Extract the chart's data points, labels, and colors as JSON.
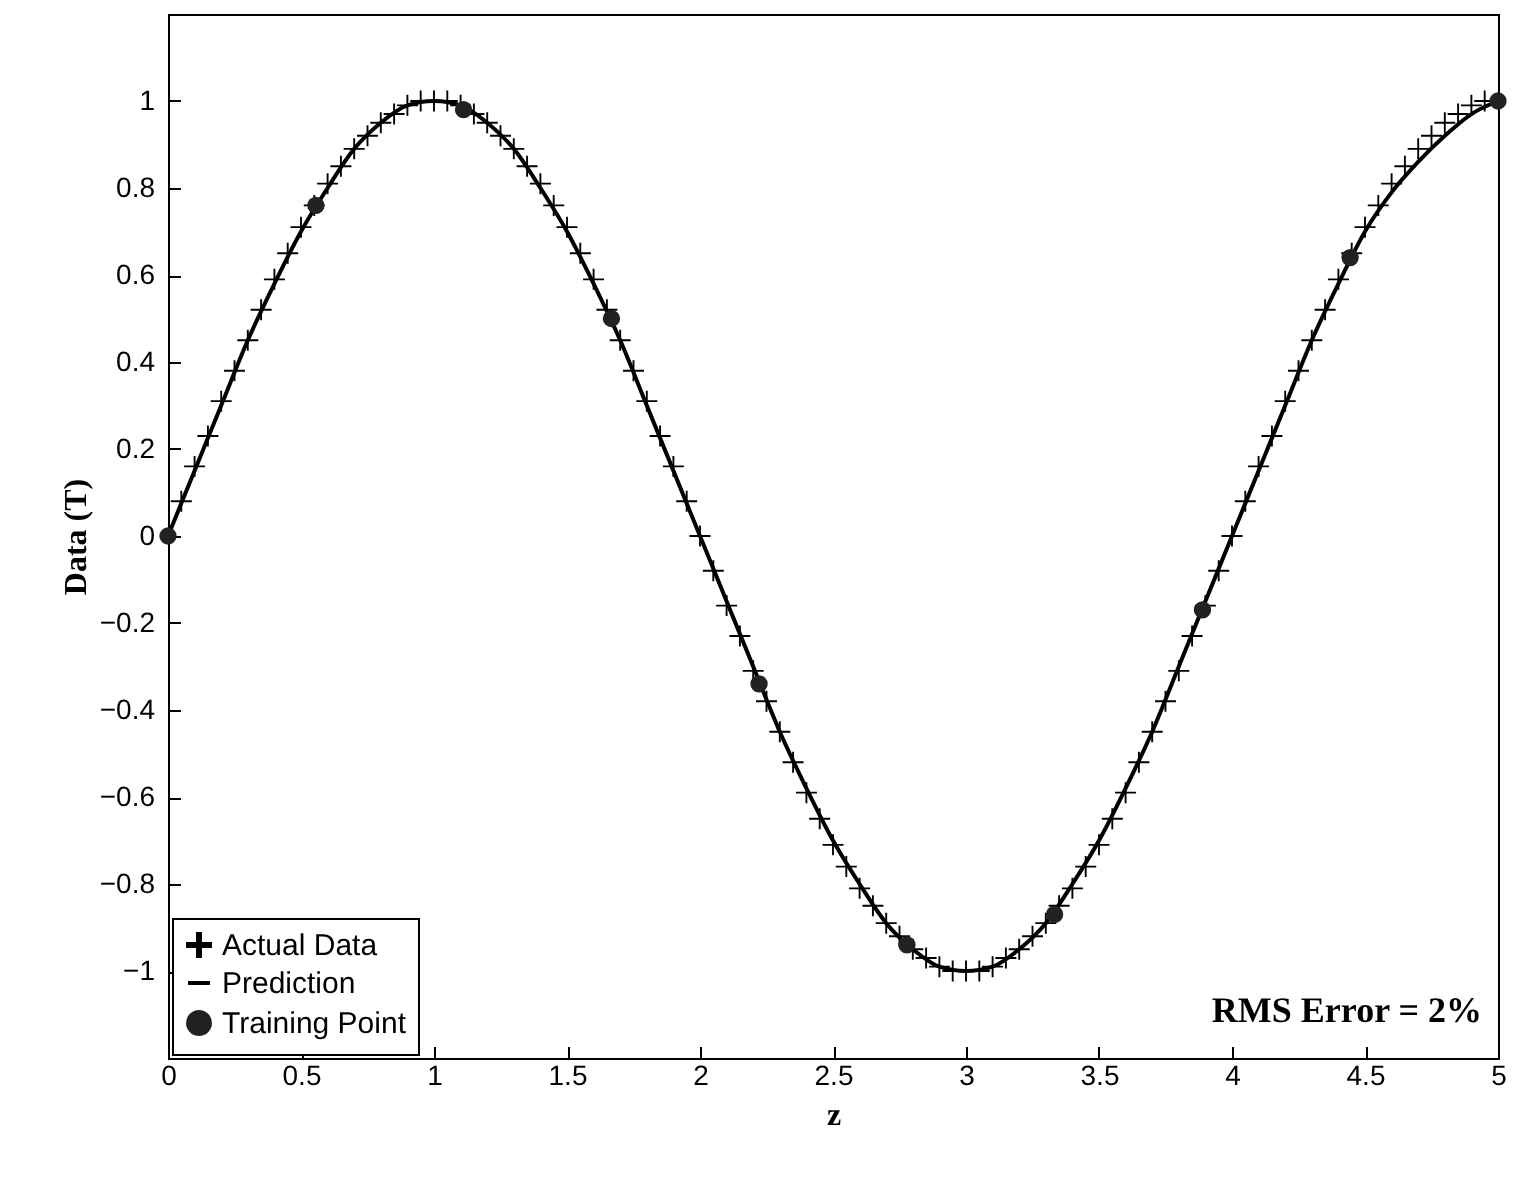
{
  "chart_data": {
    "type": "scatter",
    "xlabel": "z",
    "ylabel": "Data (T)",
    "xlim": [
      0,
      5
    ],
    "ylim": [
      -1.2,
      1.2
    ],
    "xticks": [
      0,
      0.5,
      1,
      1.5,
      2,
      2.5,
      3,
      3.5,
      4,
      4.5,
      5
    ],
    "yticks": [
      -1,
      -0.8,
      -0.6,
      -0.4,
      -0.2,
      0,
      0.2,
      0.4,
      0.6,
      0.8,
      1
    ],
    "grid": false,
    "legend": "bottom left",
    "annotations": [
      "RMS Error = 2%"
    ],
    "series": [
      {
        "name": "Actual Data",
        "marker": "cross",
        "color": "#000000",
        "x": [
          0.05,
          0.1,
          0.15,
          0.2,
          0.25,
          0.3,
          0.35,
          0.4,
          0.45,
          0.5,
          0.55,
          0.6,
          0.65,
          0.7,
          0.75,
          0.8,
          0.85,
          0.9,
          0.95,
          1,
          1.05,
          1.1,
          1.15,
          1.2,
          1.25,
          1.3,
          1.35,
          1.4,
          1.45,
          1.5,
          1.55,
          1.6,
          1.65,
          1.7,
          1.75,
          1.8,
          1.85,
          1.9,
          1.95,
          2,
          2.05,
          2.1,
          2.15,
          2.2,
          2.25,
          2.3,
          2.35,
          2.4,
          2.45,
          2.5,
          2.55,
          2.6,
          2.65,
          2.7,
          2.75,
          2.8,
          2.85,
          2.9,
          2.95,
          3,
          3.05,
          3.1,
          3.15,
          3.2,
          3.25,
          3.3,
          3.35,
          3.4,
          3.45,
          3.5,
          3.55,
          3.6,
          3.65,
          3.7,
          3.75,
          3.8,
          3.85,
          3.9,
          3.95,
          4,
          4.05,
          4.1,
          4.15,
          4.2,
          4.25,
          4.3,
          4.35,
          4.4,
          4.45,
          4.5,
          4.55,
          4.6,
          4.65,
          4.7,
          4.75,
          4.8,
          4.85,
          4.9,
          4.95
        ],
        "values": [
          0.08,
          0.16,
          0.23,
          0.31,
          0.38,
          0.45,
          0.52,
          0.59,
          0.65,
          0.71,
          0.76,
          0.81,
          0.85,
          0.89,
          0.92,
          0.95,
          0.97,
          0.99,
          1,
          1,
          1,
          0.99,
          0.97,
          0.95,
          0.92,
          0.89,
          0.85,
          0.81,
          0.76,
          0.71,
          0.65,
          0.59,
          0.52,
          0.45,
          0.38,
          0.31,
          0.23,
          0.16,
          0.08,
          0,
          -0.08,
          -0.16,
          -0.23,
          -0.31,
          -0.38,
          -0.45,
          -0.52,
          -0.59,
          -0.65,
          -0.71,
          -0.76,
          -0.81,
          -0.85,
          -0.89,
          -0.92,
          -0.95,
          -0.97,
          -0.99,
          -1,
          -1,
          -1,
          -0.99,
          -0.97,
          -0.95,
          -0.92,
          -0.89,
          -0.85,
          -0.81,
          -0.76,
          -0.71,
          -0.65,
          -0.59,
          -0.52,
          -0.45,
          -0.38,
          -0.31,
          -0.23,
          -0.16,
          -0.08,
          0,
          0.08,
          0.16,
          0.23,
          0.31,
          0.38,
          0.45,
          0.52,
          0.59,
          0.65,
          0.71,
          0.76,
          0.81,
          0.85,
          0.89,
          0.92,
          0.95,
          0.97,
          0.99,
          1
        ]
      },
      {
        "name": "Prediction",
        "type": "line",
        "color": "#000000",
        "x": [
          0,
          0.1,
          0.2,
          0.3,
          0.4,
          0.5,
          0.6,
          0.7,
          0.8,
          0.9,
          1,
          1.1,
          1.2,
          1.3,
          1.4,
          1.5,
          1.6,
          1.7,
          1.8,
          1.9,
          2,
          2.1,
          2.2,
          2.3,
          2.4,
          2.5,
          2.6,
          2.7,
          2.8,
          2.9,
          3,
          3.1,
          3.2,
          3.3,
          3.4,
          3.5,
          3.6,
          3.7,
          3.8,
          3.9,
          4,
          4.1,
          4.2,
          4.3,
          4.4,
          4.5,
          4.6,
          4.7,
          4.8,
          4.9,
          5
        ],
        "values": [
          0,
          0.15,
          0.3,
          0.45,
          0.58,
          0.7,
          0.8,
          0.89,
          0.95,
          0.99,
          1,
          0.99,
          0.95,
          0.89,
          0.8,
          0.7,
          0.58,
          0.45,
          0.3,
          0.15,
          0,
          -0.15,
          -0.3,
          -0.45,
          -0.58,
          -0.7,
          -0.8,
          -0.89,
          -0.95,
          -0.99,
          -1,
          -0.99,
          -0.95,
          -0.89,
          -0.8,
          -0.7,
          -0.58,
          -0.45,
          -0.3,
          -0.15,
          0,
          0.15,
          0.3,
          0.45,
          0.58,
          0.7,
          0.79,
          0.86,
          0.92,
          0.97,
          1
        ]
      },
      {
        "name": "Training Point",
        "marker": "circle",
        "color": "#222222",
        "x": [
          0,
          0.556,
          1.111,
          1.667,
          2.222,
          2.778,
          3.333,
          3.889,
          4.444,
          5
        ],
        "values": [
          0,
          0.76,
          0.98,
          0.5,
          -0.34,
          -0.94,
          -0.87,
          -0.17,
          0.64,
          1
        ]
      }
    ]
  }
}
